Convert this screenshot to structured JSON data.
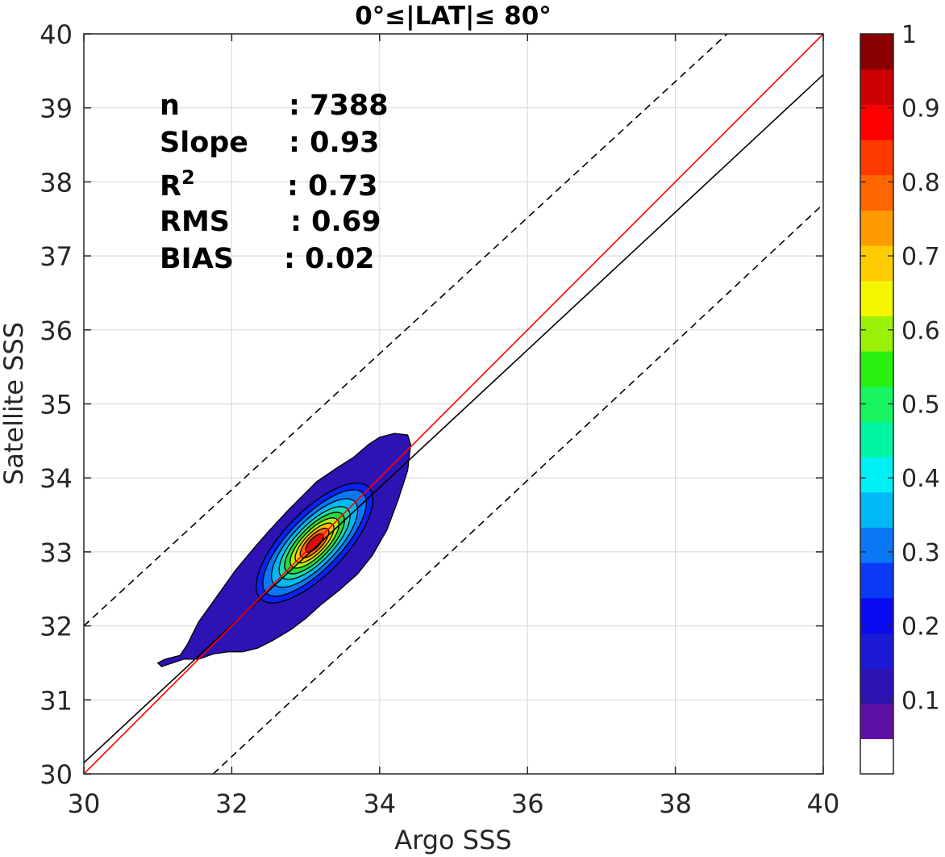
{
  "chart_data": {
    "type": "contour",
    "title": "0°≤|LAT|≤ 80°",
    "xlabel": "Argo SSS",
    "ylabel": "Satellite SSS",
    "xlim": [
      30,
      40
    ],
    "ylim": [
      30,
      40
    ],
    "xticks": [
      "30",
      "32",
      "34",
      "36",
      "38",
      "40"
    ],
    "yticks": [
      "30",
      "31",
      "32",
      "33",
      "34",
      "35",
      "36",
      "37",
      "38",
      "39",
      "40"
    ],
    "grid": true,
    "stats": [
      {
        "label": "n",
        "value": ": 7388"
      },
      {
        "label": "Slope",
        "value": ": 0.93"
      },
      {
        "label": "R",
        "sup": "2",
        "value": ": 0.73"
      },
      {
        "label": "RMS",
        "value": ": 0.69"
      },
      {
        "label": "BIAS",
        "value": ": 0.02"
      }
    ],
    "lines": {
      "identity": {
        "color": "#ff0000",
        "x": [
          30,
          40
        ],
        "y": [
          30,
          40
        ]
      },
      "fit": {
        "color": "#000000",
        "x": [
          30,
          40
        ],
        "y": [
          30.15,
          39.45
        ]
      },
      "upper_bound": {
        "color": "#000000",
        "style": "dashed",
        "x": [
          30,
          38.7
        ],
        "y": [
          32.0,
          40
        ]
      },
      "lower_bound": {
        "color": "#000000",
        "style": "dashed",
        "x": [
          31.75,
          40
        ],
        "y": [
          30,
          37.7
        ]
      }
    },
    "density_contours": {
      "center": [
        33.12,
        33.12
      ],
      "levels": [
        0.05,
        0.1,
        0.2,
        0.3,
        0.4,
        0.5,
        0.6,
        0.7,
        0.8,
        0.9
      ],
      "colors": [
        "#2d13b3",
        "#0a22f0",
        "#0a77f5",
        "#00b8f5",
        "#1fdba5",
        "#2ad73c",
        "#b0f40a",
        "#ffc200",
        "#ff6a00",
        "#d01010"
      ],
      "outer_outline": [
        [
          31.05,
          31.45
        ],
        [
          31.2,
          31.5
        ],
        [
          31.35,
          31.55
        ],
        [
          31.55,
          31.55
        ],
        [
          31.75,
          31.62
        ],
        [
          31.95,
          31.65
        ],
        [
          32.15,
          31.65
        ],
        [
          32.35,
          31.7
        ],
        [
          32.55,
          31.8
        ],
        [
          32.8,
          31.95
        ],
        [
          33.0,
          32.1
        ],
        [
          33.2,
          32.28
        ],
        [
          33.45,
          32.48
        ],
        [
          33.7,
          32.7
        ],
        [
          33.9,
          32.95
        ],
        [
          34.1,
          33.3
        ],
        [
          34.25,
          33.7
        ],
        [
          34.38,
          34.1
        ],
        [
          34.42,
          34.45
        ],
        [
          34.38,
          34.58
        ],
        [
          34.2,
          34.6
        ],
        [
          34.0,
          34.55
        ],
        [
          33.85,
          34.45
        ],
        [
          33.65,
          34.28
        ],
        [
          33.4,
          34.12
        ],
        [
          33.15,
          33.95
        ],
        [
          32.95,
          33.75
        ],
        [
          32.75,
          33.55
        ],
        [
          32.5,
          33.28
        ],
        [
          32.3,
          33.05
        ],
        [
          32.05,
          32.75
        ],
        [
          31.8,
          32.4
        ],
        [
          31.55,
          32.05
        ],
        [
          31.4,
          31.75
        ],
        [
          31.3,
          31.6
        ],
        [
          31.1,
          31.55
        ],
        [
          31.0,
          31.5
        ]
      ],
      "inner_halfaxes": [
        [
          1.05,
          0.42
        ],
        [
          0.94,
          0.35
        ],
        [
          0.78,
          0.3
        ],
        [
          0.64,
          0.25
        ],
        [
          0.54,
          0.21
        ],
        [
          0.44,
          0.17
        ],
        [
          0.35,
          0.135
        ],
        [
          0.26,
          0.1
        ],
        [
          0.16,
          0.065
        ]
      ],
      "rotation_deg": 46
    },
    "colorbar": {
      "ticks": [
        "0.1",
        "0.2",
        "0.3",
        "0.4",
        "0.5",
        "0.6",
        "0.7",
        "0.8",
        "0.9",
        "1"
      ],
      "range": [
        0,
        1
      ],
      "colors": [
        "#ffffff",
        "#5e0fa5",
        "#2d13b3",
        "#1a1ad5",
        "#0a0af0",
        "#0a3af5",
        "#0a77f5",
        "#00b8f5",
        "#00f0f5",
        "#00f5a0",
        "#19f560",
        "#2af010",
        "#9bf00a",
        "#f5f500",
        "#ffcc00",
        "#ff9900",
        "#ff6600",
        "#ff3a00",
        "#ff0000",
        "#cc0000",
        "#8a0000"
      ]
    }
  }
}
